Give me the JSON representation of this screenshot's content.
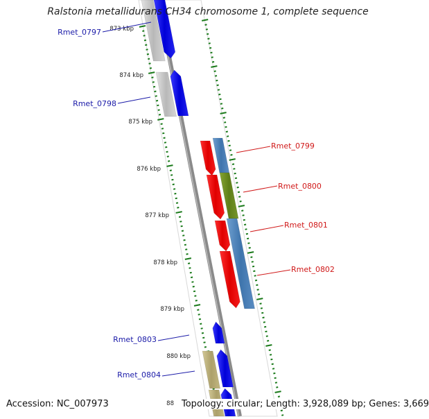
{
  "title": "Ralstonia metallidurans CH34 chromosome 1, complete sequence",
  "accession": "Accession: NC_007973",
  "summary": "Topology: circular; Length: 3,928,089 bp; Genes: 3,669",
  "colors": {
    "backbone": "#8a8a8a",
    "tick": "#1a7a1a",
    "label_left": "#1a1aa8",
    "label_right": "#d01818",
    "grey": "#c4c4c4",
    "blue": "#1010e8",
    "red": "#f01010",
    "steel": "#4f86be",
    "olive": "#6d8c22",
    "khaki": "#bdb27a"
  },
  "ruler": {
    "unit": "kbp",
    "labels": [
      "873 kbp",
      "874 kbp",
      "875 kbp",
      "876 kbp",
      "877 kbp",
      "878 kbp",
      "879 kbp",
      "880 kbp",
      "88"
    ]
  },
  "genes": [
    {
      "name": "Rmet_0797",
      "side": "left"
    },
    {
      "name": "Rmet_0798",
      "side": "left"
    },
    {
      "name": "Rmet_0799",
      "side": "right"
    },
    {
      "name": "Rmet_0800",
      "side": "right"
    },
    {
      "name": "Rmet_0801",
      "side": "right"
    },
    {
      "name": "Rmet_0802",
      "side": "right"
    },
    {
      "name": "Rmet_0803",
      "side": "left"
    },
    {
      "name": "Rmet_0804",
      "side": "left"
    }
  ]
}
